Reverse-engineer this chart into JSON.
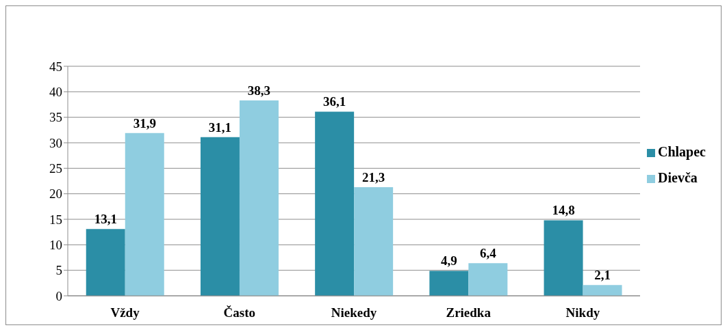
{
  "chart_data": {
    "type": "bar",
    "categories": [
      "Vždy",
      "Často",
      "Niekedy",
      "Zriedka",
      "Nikdy"
    ],
    "series": [
      {
        "name": "Chlapec",
        "color": "#2b8ea6",
        "values": [
          13.1,
          31.1,
          36.1,
          4.9,
          14.8
        ],
        "value_labels": [
          "13,1",
          "31,1",
          "36,1",
          "4,9",
          "14,8"
        ]
      },
      {
        "name": "Dievča",
        "color": "#8fcde0",
        "values": [
          31.9,
          38.3,
          21.3,
          6.4,
          2.1
        ],
        "value_labels": [
          "31,9",
          "38,3",
          "21,3",
          "6,4",
          "2,1"
        ]
      }
    ],
    "ylim": [
      0,
      45
    ],
    "yticks": [
      0,
      5,
      10,
      15,
      20,
      25,
      30,
      35,
      40,
      45
    ],
    "grid": "y",
    "legend": "right"
  }
}
